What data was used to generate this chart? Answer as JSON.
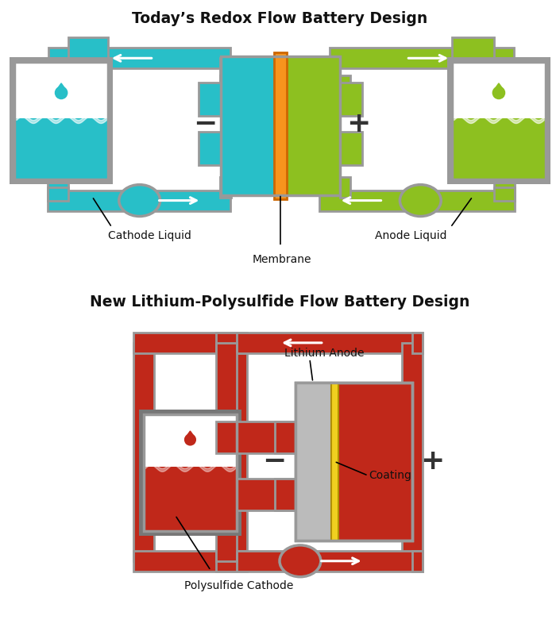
{
  "title1": "Today’s Redox Flow Battery Design",
  "title2": "New Lithium-Polysulfide Flow Battery Design",
  "cyan": "#28bfc8",
  "cyan_border": "#5accd4",
  "cyan_dark": "#1a9aa0",
  "green": "#8dc020",
  "green_border": "#a8d45a",
  "green_dark": "#6aaa1a",
  "orange": "#f7941d",
  "orange_dark": "#cc6600",
  "red": "#c0281a",
  "red_dark": "#8b1010",
  "red_border": "#cc3333",
  "gray_lt": "#bbbbbb",
  "gray_md": "#999999",
  "gray_dk": "#777777",
  "yellow": "#f0d020",
  "yellow_dark": "#b09000",
  "white": "#ffffff",
  "black": "#111111",
  "label_cathode": "Cathode Liquid",
  "label_anode": "Anode Liquid",
  "label_membrane": "Membrane",
  "label_li_anode": "Lithium Anode",
  "label_coating": "Coating",
  "label_poly": "Polysulfide Cathode"
}
